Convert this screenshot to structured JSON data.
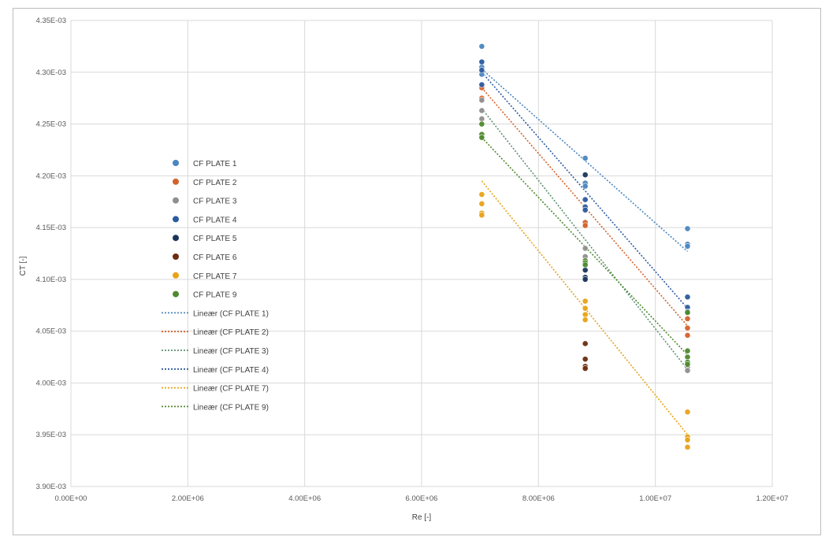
{
  "chart_data": {
    "type": "scatter",
    "title": "",
    "xlabel": "Re [-]",
    "ylabel": "CT [-]",
    "xlim": [
      0,
      12000000
    ],
    "ylim": [
      0.0039,
      0.00435
    ],
    "x_ticks": [
      0,
      2000000,
      4000000,
      6000000,
      8000000,
      10000000,
      12000000
    ],
    "x_tick_labels": [
      "0.00E+00",
      "2.00E+06",
      "4.00E+06",
      "6.00E+06",
      "8.00E+06",
      "1.00E+07",
      "1.20E+07"
    ],
    "y_ticks": [
      0.0039,
      0.00395,
      0.004,
      0.00405,
      0.0041,
      0.00415,
      0.0042,
      0.00425,
      0.0043,
      0.00435
    ],
    "y_tick_labels": [
      "3.90E-03",
      "3.95E-03",
      "4.00E-03",
      "4.05E-03",
      "4.10E-03",
      "4.15E-03",
      "4.20E-03",
      "4.25E-03",
      "4.30E-03",
      "4.35E-03"
    ],
    "grid": true,
    "legend_position": "left",
    "series": [
      {
        "name": "CF PLATE 1",
        "color": "#4a86c0",
        "points": [
          [
            7030000,
            0.004325
          ],
          [
            7030000,
            0.004305
          ],
          [
            7030000,
            0.004298
          ],
          [
            8800000,
            0.004217
          ],
          [
            8800000,
            0.004193
          ],
          [
            8800000,
            0.00419
          ],
          [
            10550000,
            0.004149
          ],
          [
            10550000,
            0.004134
          ],
          [
            10550000,
            0.004132
          ]
        ]
      },
      {
        "name": "CF PLATE 2",
        "color": "#d4622b",
        "points": [
          [
            7030000,
            0.004285
          ],
          [
            7030000,
            0.004275
          ],
          [
            8800000,
            0.004155
          ],
          [
            8800000,
            0.004152
          ],
          [
            10550000,
            0.004062
          ],
          [
            10550000,
            0.004053
          ],
          [
            10550000,
            0.004046
          ]
        ]
      },
      {
        "name": "CF PLATE 3",
        "color": "#8f8f8f",
        "points": [
          [
            7030000,
            0.004273
          ],
          [
            7030000,
            0.004263
          ],
          [
            7030000,
            0.004255
          ],
          [
            8800000,
            0.00413
          ],
          [
            8800000,
            0.004122
          ],
          [
            10550000,
            0.004015
          ],
          [
            10550000,
            0.004012
          ]
        ]
      },
      {
        "name": "CF PLATE 4",
        "color": "#2c5aa0",
        "points": [
          [
            7030000,
            0.00431
          ],
          [
            7030000,
            0.004302
          ],
          [
            7030000,
            0.004288
          ],
          [
            8800000,
            0.004177
          ],
          [
            8800000,
            0.00417
          ],
          [
            8800000,
            0.004167
          ],
          [
            10550000,
            0.004083
          ],
          [
            10550000,
            0.004073
          ],
          [
            10550000,
            0.004069
          ]
        ]
      },
      {
        "name": "CF PLATE 5",
        "color": "#1a3559",
        "points": [
          [
            8800000,
            0.004201
          ],
          [
            8800000,
            0.004109
          ],
          [
            8800000,
            0.004102
          ],
          [
            8800000,
            0.0041
          ]
        ]
      },
      {
        "name": "CF PLATE 6",
        "color": "#6b2d0f",
        "points": [
          [
            8800000,
            0.004038
          ],
          [
            8800000,
            0.004023
          ],
          [
            8800000,
            0.004016
          ],
          [
            8800000,
            0.004014
          ]
        ]
      },
      {
        "name": "CF PLATE 7",
        "color": "#e8a317",
        "points": [
          [
            7030000,
            0.004182
          ],
          [
            7030000,
            0.004173
          ],
          [
            7030000,
            0.004164
          ],
          [
            7030000,
            0.004162
          ],
          [
            8800000,
            0.004079
          ],
          [
            8800000,
            0.004072
          ],
          [
            8800000,
            0.004066
          ],
          [
            8800000,
            0.004061
          ],
          [
            10550000,
            0.003972
          ],
          [
            10550000,
            0.003948
          ],
          [
            10550000,
            0.003945
          ],
          [
            10550000,
            0.003938
          ]
        ]
      },
      {
        "name": "CF PLATE 9",
        "color": "#4f8a2e",
        "points": [
          [
            7030000,
            0.00425
          ],
          [
            7030000,
            0.00424
          ],
          [
            7030000,
            0.004237
          ],
          [
            8800000,
            0.004118
          ],
          [
            8800000,
            0.004116
          ],
          [
            8800000,
            0.004114
          ],
          [
            10550000,
            0.004031
          ],
          [
            10550000,
            0.004025
          ],
          [
            10550000,
            0.00402
          ],
          [
            10550000,
            0.004018
          ],
          [
            10550000,
            0.004068
          ]
        ]
      }
    ],
    "trendlines": [
      {
        "name": "Lineær (CF PLATE 1)",
        "color": "#4a86c0",
        "x": [
          7030000,
          10550000
        ],
        "y": [
          0.004303,
          0.004127
        ]
      },
      {
        "name": "Lineær (CF PLATE 2)",
        "color": "#d4622b",
        "x": [
          7030000,
          10550000
        ],
        "y": [
          0.004285,
          0.004055
        ]
      },
      {
        "name": "Lineær (CF PLATE 3)",
        "color": "#5b9070",
        "x": [
          7030000,
          10550000
        ],
        "y": [
          0.004265,
          0.004013
        ]
      },
      {
        "name": "Lineær (CF PLATE 4)",
        "color": "#2c5aa0",
        "x": [
          7030000,
          10550000
        ],
        "y": [
          0.0043,
          0.004072
        ]
      },
      {
        "name": "Lineær (CF PLATE 7)",
        "color": "#e8a317",
        "x": [
          7030000,
          10550000
        ],
        "y": [
          0.004195,
          0.00395
        ]
      },
      {
        "name": "Lineær (CF PLATE 9)",
        "color": "#4f8a2e",
        "x": [
          7030000,
          10550000
        ],
        "y": [
          0.004237,
          0.004027
        ]
      }
    ]
  }
}
